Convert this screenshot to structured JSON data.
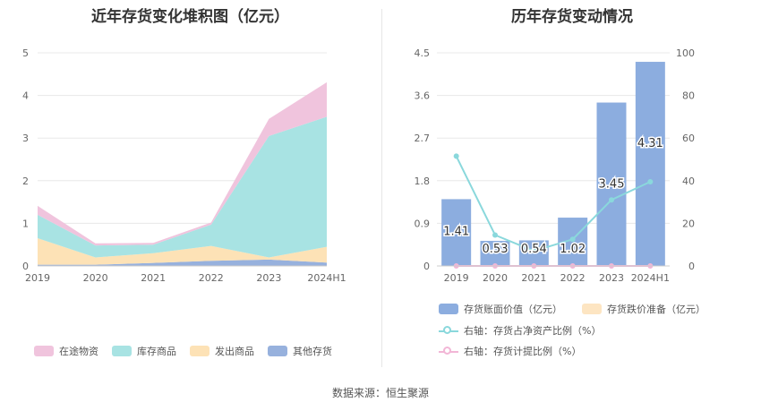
{
  "left_chart": {
    "title": "近年存货变化堆积图（亿元）",
    "legend": [
      "在途物资",
      "库存商品",
      "发出商品",
      "其他存货"
    ]
  },
  "right_chart": {
    "title": "历年存货变动情况",
    "legend": [
      "存货账面价值（亿元）",
      "存货跌价准备（亿元）",
      "右轴：存货占净资产比例（%）",
      "右轴：存货计提比例（%）"
    ]
  },
  "footer": "数据来源：恒生聚源",
  "colors": {
    "in_transit": "#f0c4dd",
    "stock_goods": "#a8e3e3",
    "shipped_goods": "#fde2b6",
    "other": "#97b1dd",
    "bar": "#8caddf",
    "impairment": "#fde5c2",
    "ratio_line": "#8ad8dc",
    "provision_line": "#f2b6d6"
  },
  "chart_data": [
    {
      "type": "area",
      "stacked": true,
      "title": "近年存货变化堆积图（亿元）",
      "categories": [
        "2019",
        "2020",
        "2021",
        "2022",
        "2023",
        "2024H1"
      ],
      "ylim": [
        0,
        5
      ],
      "yticks": [
        0,
        1,
        2,
        3,
        4,
        5
      ],
      "grid": true,
      "legend_position": "bottom",
      "series": [
        {
          "name": "其他存货",
          "values": [
            0.03,
            0.03,
            0.07,
            0.12,
            0.15,
            0.08
          ]
        },
        {
          "name": "发出商品",
          "values": [
            0.62,
            0.17,
            0.23,
            0.35,
            0.05,
            0.37
          ]
        },
        {
          "name": "库存商品",
          "values": [
            0.55,
            0.28,
            0.2,
            0.5,
            2.85,
            3.05
          ]
        },
        {
          "name": "在途物资",
          "values": [
            0.21,
            0.05,
            0.04,
            0.05,
            0.4,
            0.81
          ]
        }
      ]
    },
    {
      "type": "bar",
      "title": "历年存货变动情况",
      "categories": [
        "2019",
        "2020",
        "2021",
        "2022",
        "2023",
        "2024H1"
      ],
      "ylim_left": [
        0,
        4.5
      ],
      "yticks_left": [
        0,
        0.9,
        1.8,
        2.7,
        3.6,
        4.5
      ],
      "ylim_right": [
        0,
        100
      ],
      "yticks_right": [
        0,
        20,
        40,
        60,
        80,
        100
      ],
      "grid": true,
      "legend_position": "bottom",
      "series": [
        {
          "name": "存货账面价值（亿元）",
          "kind": "bar",
          "axis": "left",
          "values": [
            1.41,
            0.53,
            0.54,
            1.02,
            3.45,
            4.31
          ],
          "labels": [
            "1.41",
            "0.53",
            "0.54",
            "1.02",
            "3.45",
            "4.31"
          ]
        },
        {
          "name": "存货跌价准备（亿元）",
          "kind": "bar",
          "axis": "left",
          "values": [
            0,
            0,
            0,
            0,
            0,
            0
          ]
        },
        {
          "name": "右轴：存货占净资产比例（%）",
          "kind": "line",
          "axis": "right",
          "values": [
            51.5,
            14.5,
            7.0,
            12.5,
            31.0,
            39.5
          ]
        },
        {
          "name": "右轴：存货计提比例（%）",
          "kind": "line",
          "axis": "right",
          "values": [
            0,
            0,
            0,
            0,
            0,
            0
          ]
        }
      ]
    }
  ]
}
